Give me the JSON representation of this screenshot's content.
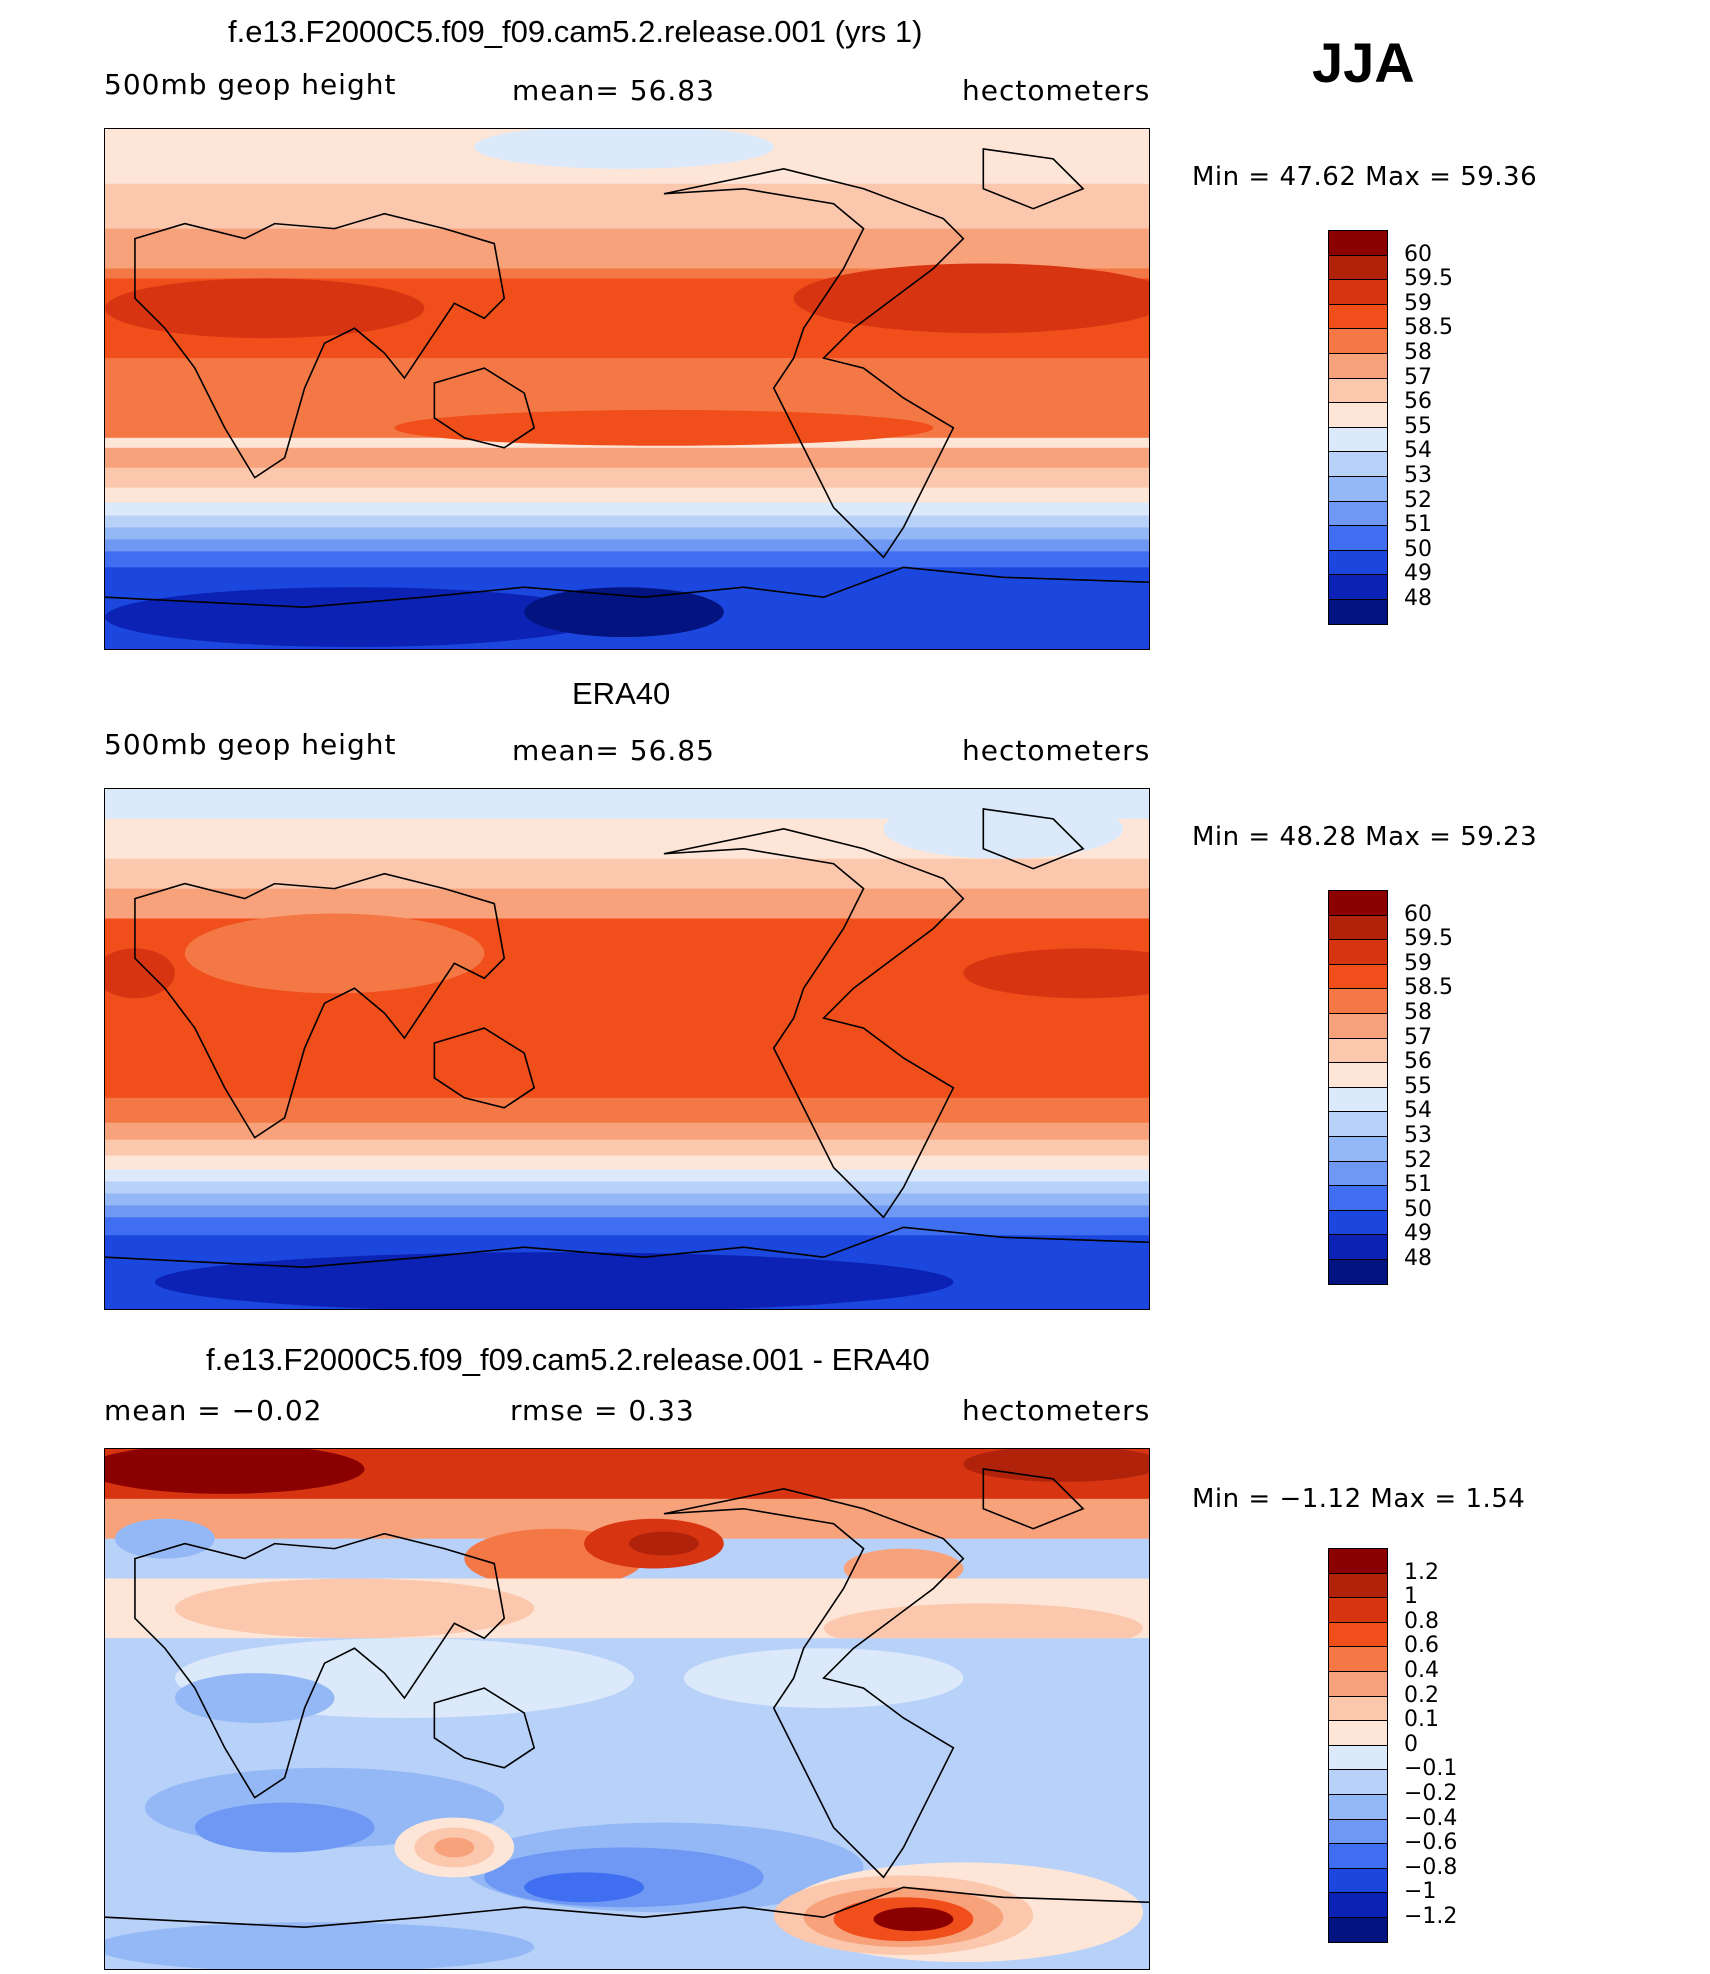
{
  "season": "JJA",
  "panels": [
    {
      "id": "model",
      "title": "f.e13.F2000C5.f09_f09.cam5.2.release.001 (yrs 1)",
      "left_label": "500mb  geop  height",
      "center_label": "mean=   56.83",
      "right_label": "hectometers",
      "min_max": "Min  =    47.62  Max  =    59.36",
      "colorbar_labels": [
        "60",
        "59.5",
        "59",
        "58.5",
        "58",
        "57",
        "56",
        "55",
        "54",
        "53",
        "52",
        "51",
        "50",
        "49",
        "48"
      ],
      "colorbar_colors": [
        "#8b0000",
        "#b0230a",
        "#d73412",
        "#f04e1b",
        "#f47845",
        "#f8a27c",
        "#fbc7ad",
        "#fde6d8",
        "#dbe9fb",
        "#b8d1f9",
        "#94b8f6",
        "#6e98f3",
        "#3f6ff0",
        "#1b47de",
        "#0b22b5",
        "#03137f"
      ]
    },
    {
      "id": "obs",
      "title": "ERA40",
      "left_label": "500mb  geop  height",
      "center_label": "mean=   56.85",
      "right_label": "hectometers",
      "min_max": "Min  =    48.28  Max  =    59.23",
      "colorbar_labels": [
        "60",
        "59.5",
        "59",
        "58.5",
        "58",
        "57",
        "56",
        "55",
        "54",
        "53",
        "52",
        "51",
        "50",
        "49",
        "48"
      ],
      "colorbar_colors": [
        "#8b0000",
        "#b0230a",
        "#d73412",
        "#f04e1b",
        "#f47845",
        "#f8a27c",
        "#fbc7ad",
        "#fde6d8",
        "#dbe9fb",
        "#b8d1f9",
        "#94b8f6",
        "#6e98f3",
        "#3f6ff0",
        "#1b47de",
        "#0b22b5",
        "#03137f"
      ]
    },
    {
      "id": "diff",
      "title": "f.e13.F2000C5.f09_f09.cam5.2.release.001 - ERA40",
      "left_label": "mean  =    −0.02",
      "center_label": "rmse  =     0.33",
      "right_label": "hectometers",
      "min_max": "Min  =    −1.12  Max  =      1.54",
      "colorbar_labels": [
        "1.2",
        "1",
        "0.8",
        "0.6",
        "0.4",
        "0.2",
        "0.1",
        "0",
        "−0.1",
        "−0.2",
        "−0.4",
        "−0.6",
        "−0.8",
        "−1",
        "−1.2"
      ],
      "colorbar_colors": [
        "#8b0000",
        "#b0230a",
        "#d73412",
        "#f04e1b",
        "#f47845",
        "#f8a27c",
        "#fbc7ad",
        "#fde6d8",
        "#dbe9fb",
        "#b8d1f9",
        "#94b8f6",
        "#6e98f3",
        "#3f6ff0",
        "#1b47de",
        "#0b22b5",
        "#03137f"
      ]
    }
  ]
}
